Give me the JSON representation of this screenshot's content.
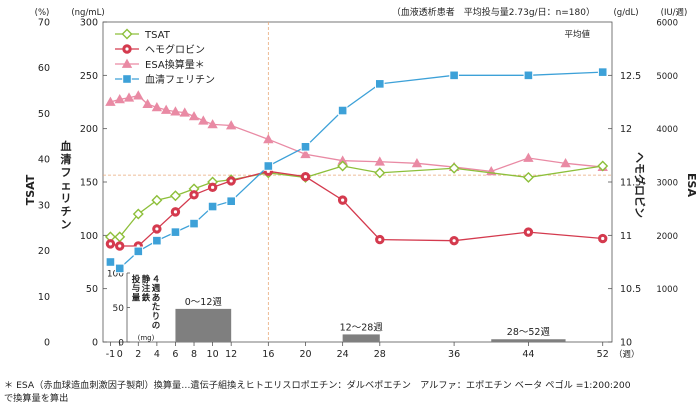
{
  "chart_data": {
    "type": "line",
    "header_note": "（血液透析患者　平均投与量2.73g/日：n=180）",
    "mean_label": "平均値",
    "x": {
      "unit": "（週）",
      "ticks": [
        "-1",
        "0",
        "2",
        "4",
        "6",
        "8",
        "10",
        "12",
        "16",
        "20",
        "24",
        "28",
        "36",
        "44",
        "52"
      ],
      "tick_values": [
        -1,
        0,
        2,
        4,
        6,
        8,
        10,
        12,
        16,
        20,
        24,
        28,
        36,
        44,
        52
      ],
      "range": [
        -1.8,
        53
      ]
    },
    "y_tsat": {
      "label": "TSAT",
      "unit": "(%)",
      "range": [
        0,
        70
      ],
      "ticks": [
        "0",
        "10",
        "20",
        "30",
        "40",
        "50",
        "60",
        "70"
      ]
    },
    "y_ferritin": {
      "label": "血清フェリチン",
      "unit": "(ng/mL)",
      "range": [
        0,
        300
      ],
      "ticks": [
        "0",
        "50",
        "100",
        "150",
        "200",
        "250",
        "300"
      ]
    },
    "y_hb": {
      "label": "ヘモグロビン",
      "unit": "(g/dL)",
      "range": [
        10,
        13
      ],
      "ticks": [
        "10",
        "10.5",
        "11",
        "11.5",
        "12",
        "12.5"
      ]
    },
    "y_esa": {
      "label": "ESA",
      "unit": "(IU/週)",
      "range": [
        0,
        6000
      ],
      "ticks": [
        "1000",
        "2000",
        "3000",
        "4000",
        "5000",
        "6000"
      ]
    },
    "reference_week": 16,
    "reference_level_tsat": 36.5,
    "series": [
      {
        "name": "TSAT",
        "axis": "tsat",
        "color": "#8dbf3a",
        "marker": "diamond",
        "x": [
          -1,
          0,
          2,
          4,
          6,
          8,
          10,
          12,
          16,
          20,
          24,
          28,
          36,
          44,
          52
        ],
        "values": [
          23,
          23,
          28,
          31,
          32,
          33.5,
          35,
          35.5,
          37,
          36,
          38.5,
          37,
          38,
          36,
          38.5
        ]
      },
      {
        "name": "ヘモグロビン",
        "axis": "hb",
        "color": "#d43a4e",
        "marker": "circle",
        "x": [
          -1,
          0,
          2,
          4,
          6,
          8,
          10,
          12,
          16,
          20,
          24,
          28,
          36,
          44,
          52
        ],
        "values": [
          10.92,
          10.9,
          10.9,
          11.06,
          11.22,
          11.38,
          11.45,
          11.51,
          11.6,
          11.55,
          11.33,
          10.96,
          10.95,
          11.03,
          10.97
        ]
      },
      {
        "name": "ESA換算量＊",
        "axis": "esa",
        "color": "#e98aa4",
        "marker": "triangle",
        "x": [
          -1,
          0,
          1,
          2,
          3,
          4,
          5,
          6,
          7,
          8,
          9,
          10,
          12,
          16,
          20,
          24,
          28,
          32,
          36,
          40,
          44,
          48,
          52
        ],
        "values": [
          4500,
          4550,
          4580,
          4620,
          4460,
          4400,
          4350,
          4320,
          4300,
          4230,
          4150,
          4080,
          4060,
          3800,
          3520,
          3400,
          3380,
          3350,
          3280,
          3200,
          3450,
          3350,
          3280
        ]
      },
      {
        "name": "血清フェリチン",
        "axis": "ferritin",
        "color": "#3da1d8",
        "marker": "square",
        "x": [
          -1,
          0,
          2,
          4,
          6,
          8,
          10,
          12,
          16,
          20,
          24,
          28,
          36,
          44,
          52
        ],
        "values": [
          75,
          69,
          85,
          95,
          103,
          111,
          127,
          132,
          165,
          183,
          217,
          242,
          250,
          250,
          253
        ]
      }
    ],
    "inset_bars": {
      "axis_label": "４週あたりの静注鉄投与量(mg)",
      "axis_ticks": [
        "0",
        "50",
        "100"
      ],
      "range": [
        0,
        100
      ],
      "bars": [
        {
          "label": "0〜12週",
          "x_start": 6,
          "x_end": 12,
          "value": 48
        },
        {
          "label": "12〜28週",
          "x_start": 24,
          "x_end": 28,
          "value": 11
        },
        {
          "label": "28〜52週",
          "x_start": 40,
          "x_end": 48,
          "value": 4
        }
      ]
    }
  },
  "footnote": {
    "line1": "＊ ESA（赤血球造血刺激因子製剤）換算量…遺伝子組換えヒトエリスロポエチン：ダルベポエチン　アルファ：エポエチン ベータ ペゴル =1:200:200",
    "line2": "で換算量を算出"
  }
}
